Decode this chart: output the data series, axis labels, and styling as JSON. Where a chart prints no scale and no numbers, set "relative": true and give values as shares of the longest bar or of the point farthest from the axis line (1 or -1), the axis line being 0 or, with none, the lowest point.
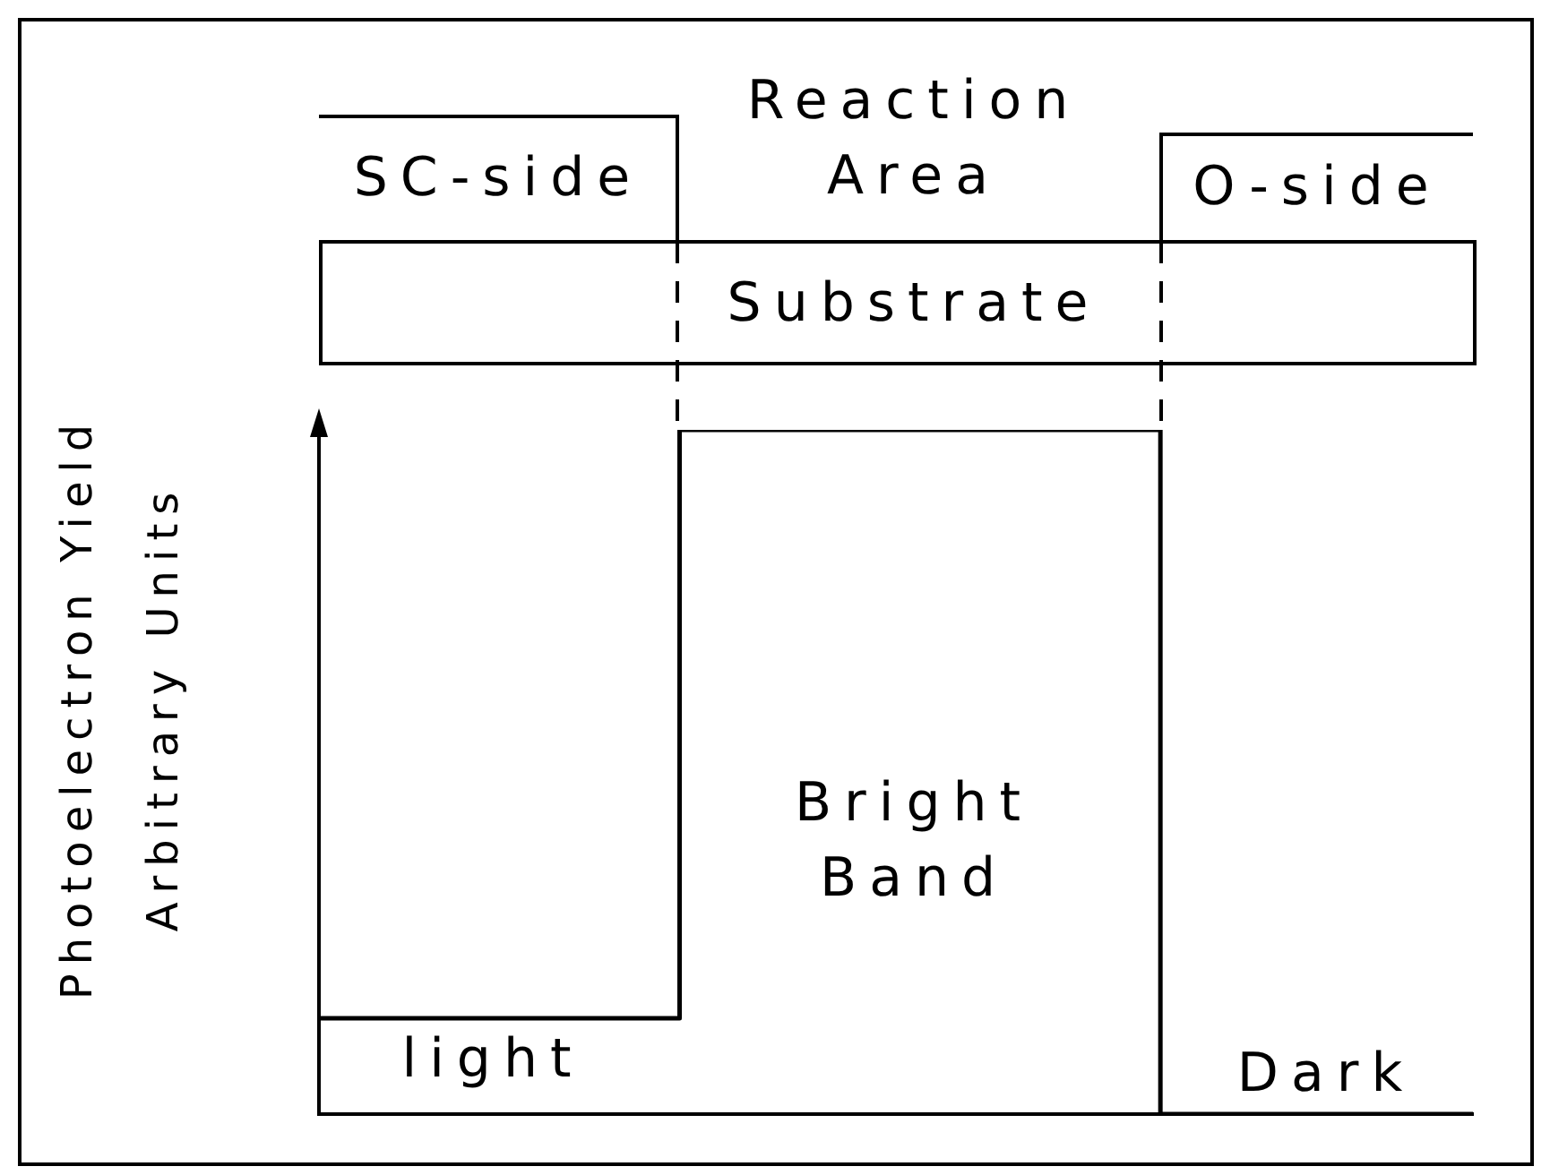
{
  "chart_data": {
    "type": "step",
    "ylabel": "Photoelectron Yield\nArbitrary Units",
    "relative": true,
    "marker": "none",
    "color": "#000000",
    "categories": [
      null,
      null,
      null,
      null,
      null,
      null,
      null,
      null,
      null,
      null,
      null,
      null,
      null,
      null,
      null,
      null,
      null,
      null,
      null,
      null,
      null,
      null,
      null,
      null,
      null
    ],
    "values": [
      0.14,
      0.14,
      0.14,
      0.14,
      0.14,
      0.14,
      0.14,
      0.14,
      1,
      1,
      1,
      1,
      1,
      1,
      1,
      1,
      1,
      1,
      0,
      0,
      0,
      0,
      0,
      0,
      0
    ],
    "annotations": [
      "SC-side",
      "Reaction Area",
      "O-side",
      "Substrate",
      "light",
      "Bright Band",
      "Dark"
    ]
  }
}
